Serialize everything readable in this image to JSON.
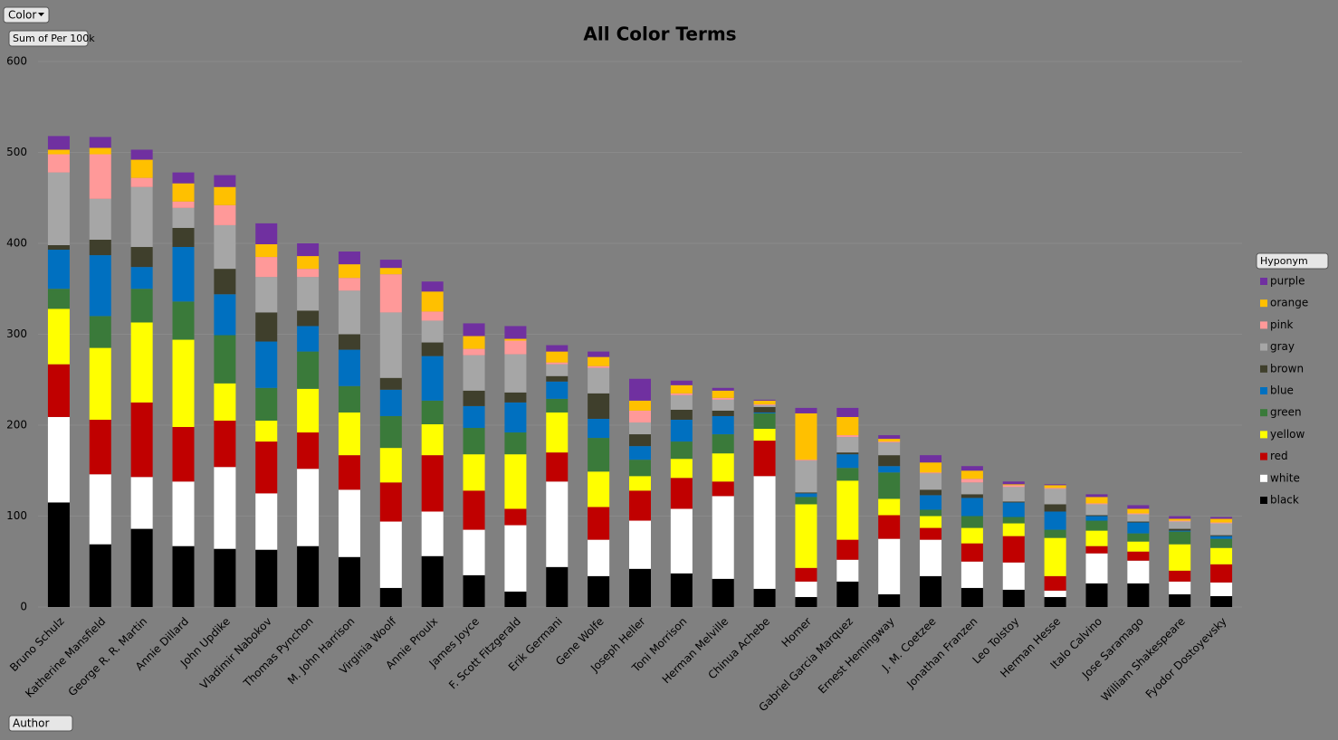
{
  "controls": {
    "color_filter": "Color",
    "value_field": "Sum of Per 100k",
    "legend_field": "Hyponym",
    "axis_field": "Author"
  },
  "chart_data": {
    "type": "stacked_bar",
    "title": "All Color Terms",
    "categories": [
      "Bruno Schulz",
      "Katherine Mansfield",
      "George R. R. Martin",
      "Annie Dillard",
      "John Updike",
      "Vladimir Nabokov",
      "Thomas Pynchon",
      "M. John Harrison",
      "Virginia Woolf",
      "Annie Proulx",
      "James Joyce",
      "F. Scott Fitzgerald",
      "Erik Germani",
      "Gene Wolfe",
      "Joseph Heller",
      "Toni Morrison",
      "Herman Melville",
      "Chinua Achebe",
      "Homer",
      "Gabriel Garcia Marquez",
      "Ernest Hemingway",
      "J. M. Coetzee",
      "Jonathan Franzen",
      "Leo Tolstoy",
      "Herman Hesse",
      "Italo Calvino",
      "Jose Saramago",
      "William Shakespeare",
      "Fyodor Dostoyevsky"
    ],
    "series": [
      {
        "name": "black",
        "color": "#000000",
        "values": [
          115,
          69,
          86,
          67,
          64,
          63,
          67,
          55,
          21,
          56,
          35,
          17,
          44,
          34,
          42,
          37,
          31,
          20,
          11,
          28,
          14,
          34,
          21,
          19,
          11,
          26,
          26,
          14,
          12
        ]
      },
      {
        "name": "white",
        "color": "#ffffff",
        "values": [
          94,
          77,
          57,
          71,
          90,
          62,
          85,
          74,
          73,
          49,
          50,
          73,
          94,
          40,
          53,
          71,
          91,
          124,
          17,
          24,
          61,
          40,
          29,
          30,
          7,
          33,
          25,
          14,
          15
        ]
      },
      {
        "name": "red",
        "color": "#c00000",
        "values": [
          58,
          60,
          82,
          60,
          51,
          57,
          40,
          38,
          43,
          62,
          43,
          18,
          32,
          36,
          33,
          34,
          16,
          39,
          15,
          22,
          26,
          13,
          20,
          29,
          16,
          8,
          10,
          12,
          20
        ]
      },
      {
        "name": "yellow",
        "color": "#ffff00",
        "values": [
          61,
          79,
          88,
          96,
          41,
          23,
          48,
          47,
          38,
          34,
          40,
          60,
          44,
          39,
          16,
          21,
          31,
          13,
          70,
          65,
          18,
          13,
          17,
          14,
          42,
          17,
          11,
          29,
          18
        ]
      },
      {
        "name": "green",
        "color": "#3a7a3a",
        "values": [
          22,
          35,
          37,
          42,
          53,
          36,
          41,
          29,
          35,
          26,
          29,
          24,
          15,
          37,
          18,
          19,
          21,
          17,
          8,
          14,
          29,
          7,
          13,
          7,
          9,
          11,
          9,
          14,
          10
        ]
      },
      {
        "name": "blue",
        "color": "#0070c0",
        "values": [
          43,
          67,
          24,
          60,
          45,
          51,
          28,
          40,
          29,
          49,
          24,
          33,
          19,
          21,
          15,
          24,
          20,
          1,
          4,
          15,
          7,
          16,
          20,
          16,
          20,
          5,
          12,
          1,
          3
        ]
      },
      {
        "name": "brown",
        "color": "#3f3f2c",
        "values": [
          5,
          17,
          22,
          21,
          28,
          32,
          17,
          17,
          13,
          15,
          17,
          11,
          6,
          28,
          13,
          11,
          6,
          6,
          1,
          2,
          12,
          6,
          4,
          1,
          8,
          1,
          1,
          2,
          1
        ]
      },
      {
        "name": "gray",
        "color": "#a6a6a6",
        "values": [
          80,
          45,
          66,
          22,
          48,
          39,
          37,
          48,
          72,
          24,
          39,
          42,
          13,
          28,
          13,
          16,
          12,
          2,
          35,
          17,
          14,
          18,
          13,
          16,
          17,
          12,
          8,
          8,
          13
        ]
      },
      {
        "name": "pink",
        "color": "#ff9999",
        "values": [
          20,
          49,
          10,
          7,
          22,
          22,
          9,
          14,
          42,
          10,
          7,
          15,
          2,
          2,
          13,
          2,
          2,
          1,
          1,
          2,
          1,
          1,
          4,
          2,
          1,
          1,
          1,
          1,
          1
        ]
      },
      {
        "name": "orange",
        "color": "#ffc000",
        "values": [
          5,
          7,
          20,
          20,
          20,
          14,
          14,
          15,
          7,
          22,
          14,
          2,
          12,
          10,
          11,
          9,
          8,
          4,
          51,
          20,
          3,
          11,
          9,
          1,
          3,
          7,
          5,
          2,
          4
        ]
      },
      {
        "name": "purple",
        "color": "#7030a0",
        "values": [
          15,
          12,
          11,
          12,
          13,
          23,
          14,
          14,
          9,
          11,
          14,
          14,
          7,
          6,
          24,
          5,
          3,
          1,
          6,
          10,
          4,
          8,
          5,
          3,
          1,
          3,
          4,
          3,
          2
        ]
      }
    ],
    "ylim": [
      0,
      600
    ],
    "yticks": [
      0,
      100,
      200,
      300,
      400,
      500,
      600
    ],
    "grid": true,
    "legend": "right"
  }
}
